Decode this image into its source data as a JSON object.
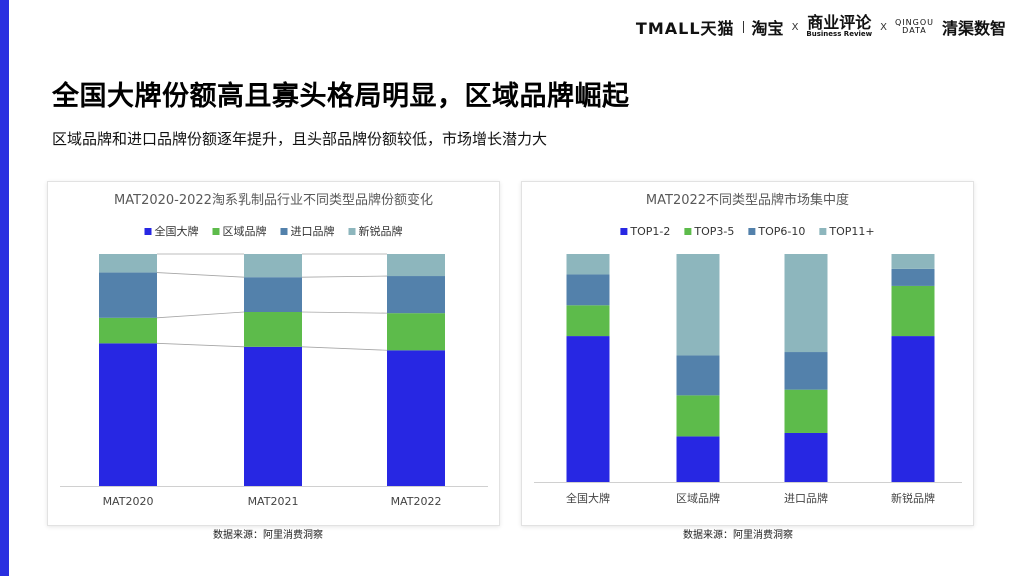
{
  "header": {
    "brands": {
      "tmall": "TMALL天猫",
      "taobao": "淘宝",
      "cx_cn": "商业评论",
      "cx_en": "Business Review",
      "qingou_top": "QINGOU",
      "qingou_bottom": "DATA",
      "qingqu": "清渠数智",
      "sep": "X"
    }
  },
  "page": {
    "title": "全国大牌份额高且寡头格局明显，区域品牌崛起",
    "subtitle": "区域品牌和进口品牌份额逐年提升，且头部品牌份额较低，市场增长潜力大"
  },
  "chart_data": [
    {
      "type": "bar",
      "stacked": true,
      "normalized": true,
      "title": "MAT2020-2022淘系乳制品行业不同类型品牌份额变化",
      "categories": [
        "MAT2020",
        "MAT2021",
        "MAT2022"
      ],
      "series": [
        {
          "name": "全国大牌",
          "color": "#2727e3",
          "values": [
            61.5,
            60,
            58.5
          ]
        },
        {
          "name": "区域品牌",
          "color": "#5dbb4b",
          "values": [
            11,
            15,
            16
          ]
        },
        {
          "name": "进口品牌",
          "color": "#5381ab",
          "values": [
            19.5,
            15,
            16
          ]
        },
        {
          "name": "新锐品牌",
          "color": "#8db6bd",
          "values": [
            8,
            10,
            9.5
          ]
        }
      ],
      "ylim": [
        0,
        100
      ],
      "legend": "top",
      "connectors": true,
      "grid": false,
      "source": "数据来源：阿里消费洞察"
    },
    {
      "type": "bar",
      "stacked": true,
      "normalized": true,
      "title": "MAT2022不同类型品牌市场集中度",
      "categories": [
        "全国大牌",
        "区域品牌",
        "进口品牌",
        "新锐品牌"
      ],
      "series": [
        {
          "name": "TOP1-2",
          "color": "#2727e3",
          "values": [
            64,
            20,
            21.5,
            64
          ]
        },
        {
          "name": "TOP3-5",
          "color": "#5dbb4b",
          "values": [
            13.5,
            18,
            19,
            22
          ]
        },
        {
          "name": "TOP6-10",
          "color": "#5381ab",
          "values": [
            13.5,
            17.5,
            16.5,
            7.5
          ]
        },
        {
          "name": "TOP11+",
          "color": "#8db6bd",
          "values": [
            9,
            44.5,
            43,
            6.5
          ]
        }
      ],
      "ylim": [
        0,
        100
      ],
      "legend": "top",
      "connectors": false,
      "grid": false,
      "source": "数据来源：阿里消费洞察"
    }
  ]
}
